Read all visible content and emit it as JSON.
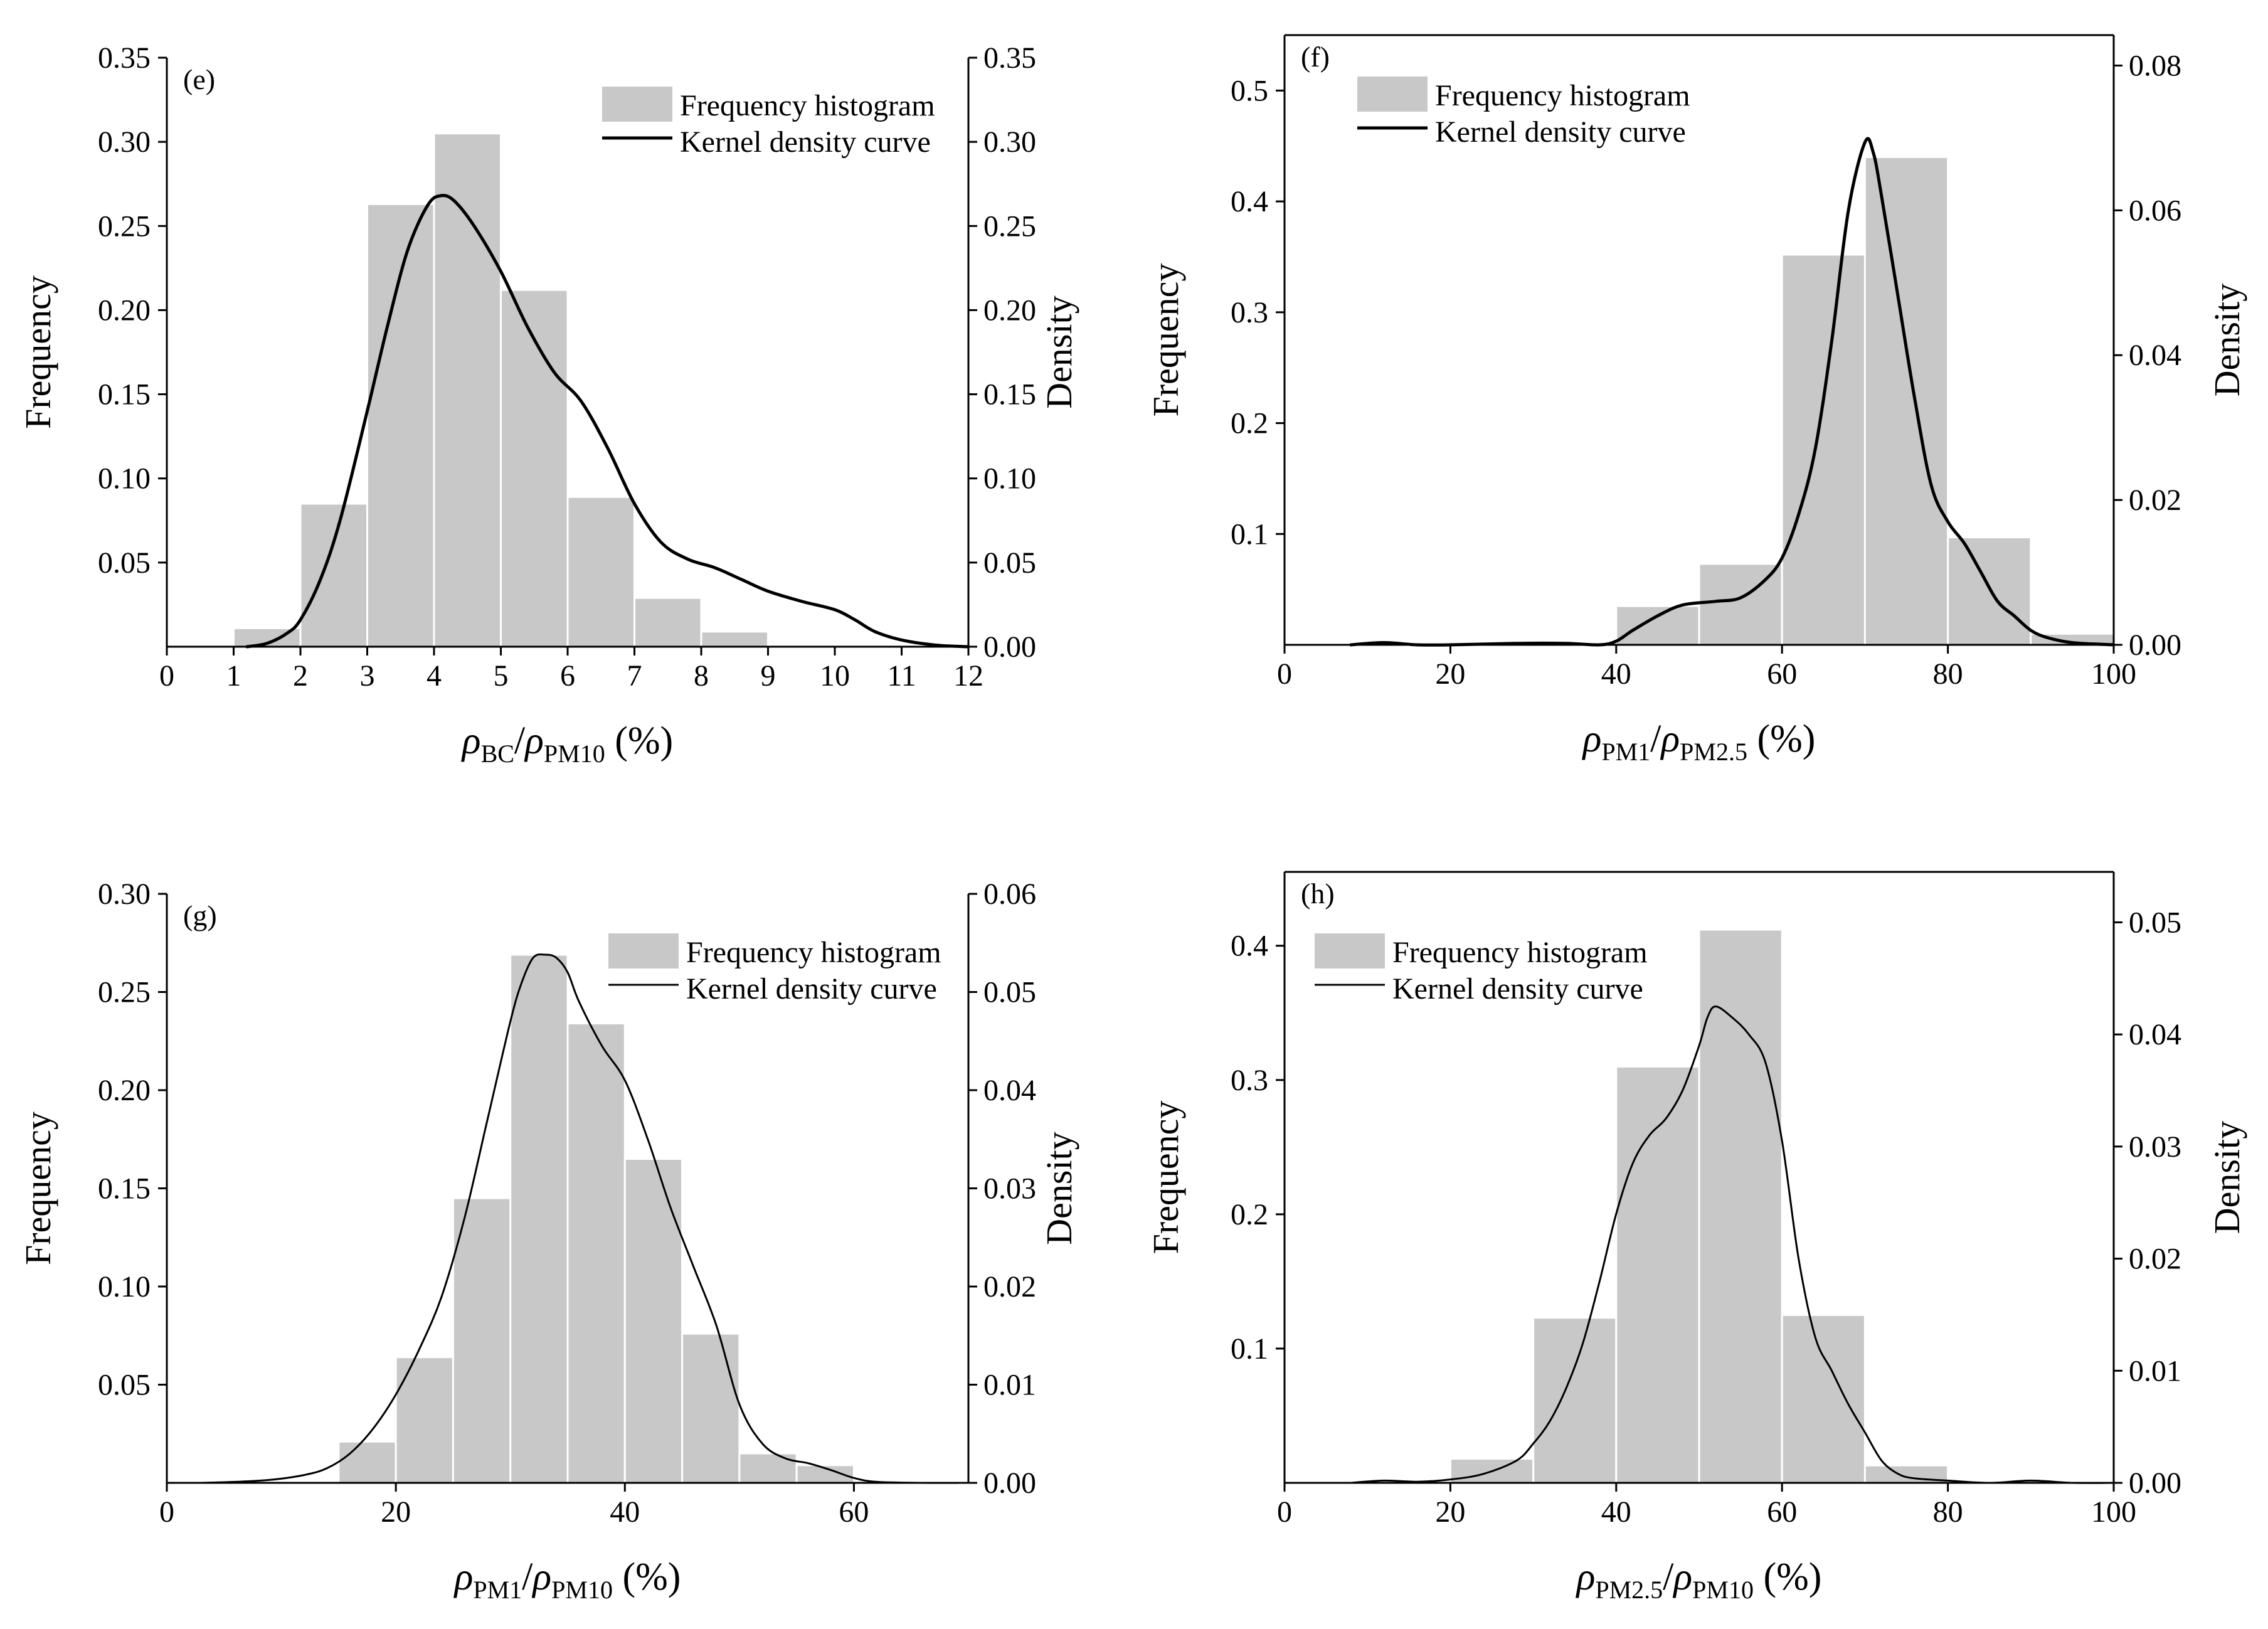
{
  "colors": {
    "bar": "#c8c8c8",
    "bar_edge": "#ffffff",
    "curve": "#000000",
    "axis": "#000000"
  },
  "chart_data": [
    {
      "id": "e",
      "type": "bar",
      "panel_label": "(e)",
      "xlabel": {
        "sym1": "ρ",
        "sub1": "BC",
        "sep": "/",
        "sym2": "ρ",
        "sub2": "PM10",
        "unit": " (%)"
      },
      "ylabel": "Frequency",
      "y2label": "Density",
      "xlim": [
        0,
        12
      ],
      "ylim": [
        0,
        0.35
      ],
      "y2lim": [
        0,
        0.35
      ],
      "xticks": [
        0,
        1,
        2,
        3,
        4,
        5,
        6,
        7,
        8,
        9,
        10,
        11,
        12
      ],
      "xtick_labels": [
        "0",
        "1",
        "2",
        "3",
        "4",
        "5",
        "6",
        "7",
        "8",
        "9",
        "10",
        "11",
        "12"
      ],
      "yticks": [
        0.05,
        0.1,
        0.15,
        0.2,
        0.25,
        0.3,
        0.35
      ],
      "ytick_labels": [
        "0.05",
        "0.10",
        "0.15",
        "0.20",
        "0.25",
        "0.30",
        "0.35"
      ],
      "y2ticks": [
        0,
        0.05,
        0.1,
        0.15,
        0.2,
        0.25,
        0.3,
        0.35
      ],
      "y2tick_labels": [
        "0.00",
        "0.05",
        "0.10",
        "0.15",
        "0.20",
        "0.25",
        "0.30",
        "0.35"
      ],
      "bins": [
        [
          1,
          2
        ],
        [
          2,
          3
        ],
        [
          3,
          4
        ],
        [
          4,
          5
        ],
        [
          5,
          6
        ],
        [
          6,
          7
        ],
        [
          7,
          8
        ],
        [
          8,
          9
        ]
      ],
      "values": [
        0.011,
        0.085,
        0.263,
        0.305,
        0.212,
        0.089,
        0.029,
        0.009
      ],
      "legend": {
        "hist": "Frequency histogram",
        "kde": "Kernel density curve",
        "position": "top-right"
      },
      "kde": {
        "x": [
          1.2,
          1.5,
          1.8,
          2.0,
          2.3,
          2.6,
          3.0,
          3.3,
          3.6,
          3.9,
          4.1,
          4.3,
          4.6,
          5.0,
          5.4,
          5.8,
          6.2,
          6.6,
          7.0,
          7.4,
          7.8,
          8.2,
          8.6,
          9.0,
          9.5,
          10.0,
          10.3,
          10.6,
          11.0,
          11.5,
          12.0
        ],
        "y": [
          0.0,
          0.002,
          0.008,
          0.016,
          0.04,
          0.076,
          0.14,
          0.19,
          0.235,
          0.262,
          0.268,
          0.265,
          0.25,
          0.223,
          0.19,
          0.163,
          0.146,
          0.118,
          0.085,
          0.062,
          0.052,
          0.047,
          0.04,
          0.033,
          0.027,
          0.022,
          0.016,
          0.009,
          0.004,
          0.001,
          0.0
        ],
        "axis": "y2",
        "stroke": 5
      }
    },
    {
      "id": "f",
      "type": "bar",
      "panel_label": "(f)",
      "xlabel": {
        "sym1": "ρ",
        "sub1": "PM1",
        "sep": "/",
        "sym2": "ρ",
        "sub2": "PM2.5",
        "unit": " (%)"
      },
      "ylabel": "Frequency",
      "y2label": "Density",
      "xlim": [
        0,
        100
      ],
      "ylim": [
        0,
        0.55
      ],
      "y2lim": [
        0,
        0.0842
      ],
      "xticks": [
        0,
        20,
        40,
        60,
        80,
        100
      ],
      "xtick_labels": [
        "0",
        "20",
        "40",
        "60",
        "80",
        "100"
      ],
      "yticks": [
        0.1,
        0.2,
        0.3,
        0.4,
        0.5
      ],
      "ytick_labels": [
        "0.1",
        "0.2",
        "0.3",
        "0.4",
        "0.5"
      ],
      "y2ticks": [
        0,
        0.02,
        0.04,
        0.06,
        0.08
      ],
      "y2tick_labels": [
        "0.00",
        "0.02",
        "0.04",
        "0.06",
        "0.08"
      ],
      "bins": [
        [
          40,
          50
        ],
        [
          50,
          60
        ],
        [
          60,
          70
        ],
        [
          70,
          80
        ],
        [
          80,
          90
        ],
        [
          90,
          100
        ]
      ],
      "values": [
        0.035,
        0.073,
        0.352,
        0.44,
        0.097,
        0.01
      ],
      "legend": {
        "hist": "Frequency histogram",
        "kde": "Kernel density curve",
        "position": "top-left"
      },
      "kde": {
        "x": [
          8,
          12,
          16,
          20,
          28,
          34,
          38,
          40,
          42,
          45,
          48,
          52,
          55,
          58,
          60,
          62,
          64,
          66,
          68,
          70,
          71,
          72,
          74,
          76,
          78,
          80,
          82,
          84,
          86,
          88,
          90,
          92,
          95,
          100
        ],
        "y": [
          0.0,
          0.0003,
          0.0,
          0.0,
          0.0002,
          0.0002,
          0.0,
          0.0005,
          0.002,
          0.004,
          0.0055,
          0.006,
          0.0065,
          0.009,
          0.012,
          0.018,
          0.027,
          0.042,
          0.06,
          0.0694,
          0.068,
          0.062,
          0.048,
          0.034,
          0.022,
          0.017,
          0.014,
          0.01,
          0.006,
          0.004,
          0.002,
          0.001,
          0.0003,
          0.0
        ],
        "axis": "y2",
        "stroke": 5
      }
    },
    {
      "id": "g",
      "type": "bar",
      "panel_label": "(g)",
      "xlabel": {
        "sym1": "ρ",
        "sub1": "PM1",
        "sep": "/",
        "sym2": "ρ",
        "sub2": "PM10",
        "unit": " (%)"
      },
      "ylabel": "Frequency",
      "y2label": "Density",
      "xlim": [
        0,
        70
      ],
      "ylim": [
        0,
        0.3
      ],
      "y2lim": [
        0,
        0.06
      ],
      "xticks": [
        0,
        20,
        40,
        60
      ],
      "xtick_labels": [
        "0",
        "20",
        "40",
        "60"
      ],
      "yticks": [
        0.05,
        0.1,
        0.15,
        0.2,
        0.25,
        0.3
      ],
      "ytick_labels": [
        "0.05",
        "0.10",
        "0.15",
        "0.20",
        "0.25",
        "0.30"
      ],
      "y2ticks": [
        0,
        0.01,
        0.02,
        0.03,
        0.04,
        0.05,
        0.06
      ],
      "y2tick_labels": [
        "0.00",
        "0.01",
        "0.02",
        "0.03",
        "0.04",
        "0.05",
        "0.06"
      ],
      "bins": [
        [
          15,
          20
        ],
        [
          20,
          25
        ],
        [
          25,
          30
        ],
        [
          30,
          35
        ],
        [
          35,
          40
        ],
        [
          40,
          45
        ],
        [
          45,
          50
        ],
        [
          50,
          55
        ],
        [
          55,
          60
        ]
      ],
      "values": [
        0.021,
        0.064,
        0.145,
        0.269,
        0.234,
        0.165,
        0.076,
        0.015,
        0.009
      ],
      "legend": {
        "hist": "Frequency histogram",
        "kde": "Kernel density curve",
        "position": "top-right"
      },
      "kde": {
        "x": [
          3,
          6,
          9,
          12,
          14,
          16,
          18,
          20,
          22,
          24,
          26,
          28,
          30,
          31,
          32,
          33,
          34,
          35,
          36,
          38,
          40,
          42,
          44,
          46,
          48,
          50,
          52,
          54,
          56,
          58,
          60,
          62,
          66,
          70
        ],
        "y": [
          0.0,
          0.0001,
          0.0003,
          0.0008,
          0.0015,
          0.003,
          0.0055,
          0.009,
          0.0135,
          0.019,
          0.027,
          0.037,
          0.047,
          0.051,
          0.0535,
          0.0538,
          0.0535,
          0.052,
          0.049,
          0.0445,
          0.041,
          0.035,
          0.028,
          0.022,
          0.016,
          0.008,
          0.004,
          0.0025,
          0.002,
          0.0013,
          0.0005,
          0.0001,
          0.0,
          0.0
        ],
        "axis": "y2",
        "stroke": 3
      }
    },
    {
      "id": "h",
      "type": "bar",
      "panel_label": "(h)",
      "xlabel": {
        "sym1": "ρ",
        "sub1": "PM2.5",
        "sep": "/",
        "sym2": "ρ",
        "sub2": "PM10",
        "unit": " (%)"
      },
      "ylabel": "Frequency",
      "y2label": "Density",
      "xlim": [
        0,
        100
      ],
      "ylim": [
        0,
        0.455
      ],
      "y2lim": [
        0,
        0.0545
      ],
      "xticks": [
        0,
        20,
        40,
        60,
        80,
        100
      ],
      "xtick_labels": [
        "0",
        "20",
        "40",
        "60",
        "80",
        "100"
      ],
      "yticks": [
        0.1,
        0.2,
        0.3,
        0.4
      ],
      "ytick_labels": [
        "0.1",
        "0.2",
        "0.3",
        "0.4"
      ],
      "y2ticks": [
        0,
        0.01,
        0.02,
        0.03,
        0.04,
        0.05
      ],
      "y2tick_labels": [
        "0.00",
        "0.01",
        "0.02",
        "0.03",
        "0.04",
        "0.05"
      ],
      "bins": [
        [
          20,
          30
        ],
        [
          30,
          40
        ],
        [
          40,
          50
        ],
        [
          50,
          60
        ],
        [
          60,
          70
        ],
        [
          70,
          80
        ]
      ],
      "values": [
        0.018,
        0.123,
        0.31,
        0.412,
        0.125,
        0.013
      ],
      "legend": {
        "hist": "Frequency histogram",
        "kde": "Kernel density curve",
        "position": "top-left"
      },
      "kde": {
        "x": [
          8,
          12,
          16,
          20,
          24,
          28,
          30,
          32,
          34,
          36,
          38,
          40,
          42,
          44,
          46,
          48,
          50,
          51,
          52,
          54,
          56,
          58,
          60,
          62,
          64,
          66,
          68,
          70,
          72,
          74,
          76,
          80,
          85,
          90,
          95,
          100
        ],
        "y": [
          0.0,
          0.0002,
          0.0001,
          0.0003,
          0.0008,
          0.002,
          0.0035,
          0.0055,
          0.0085,
          0.0125,
          0.018,
          0.024,
          0.0285,
          0.031,
          0.0325,
          0.035,
          0.039,
          0.0415,
          0.0425,
          0.0415,
          0.04,
          0.0375,
          0.0305,
          0.02,
          0.013,
          0.01,
          0.007,
          0.0045,
          0.002,
          0.0008,
          0.0004,
          0.0002,
          0.0,
          0.0002,
          0.0,
          0.0
        ],
        "axis": "y2",
        "stroke": 3
      }
    }
  ]
}
